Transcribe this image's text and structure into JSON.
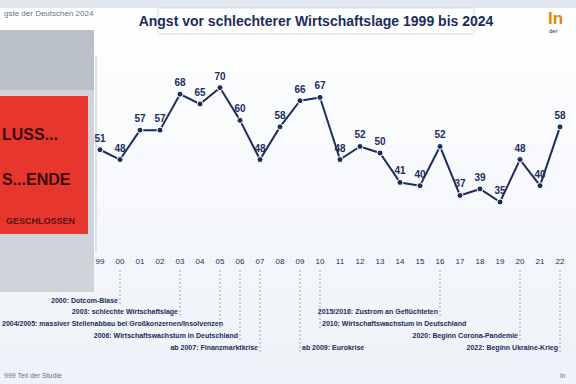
{
  "header": {
    "topic": "gste der Deutschen 2024",
    "logo": "In",
    "logo_sub": "der",
    "footer_left": "999 Teil der Studie",
    "footer_right": "in"
  },
  "photo": {
    "texts": [
      "LUSS...",
      "S...ENDE",
      "GESCHLOSSEN"
    ]
  },
  "chart_data": {
    "type": "line",
    "title": "Angst vor schlechterer Wirtschaftslage 1999 bis 2024",
    "categories": [
      "99",
      "00",
      "01",
      "02",
      "03",
      "04",
      "05",
      "06",
      "07",
      "08",
      "09",
      "10",
      "11",
      "12",
      "13",
      "14",
      "15",
      "16",
      "17",
      "18",
      "19",
      "20",
      "21",
      "22"
    ],
    "values": [
      51,
      48,
      57,
      57,
      68,
      65,
      70,
      60,
      48,
      58,
      66,
      67,
      48,
      52,
      50,
      41,
      40,
      52,
      37,
      39,
      35,
      48,
      40,
      58
    ],
    "color": "#1c2d5c",
    "marker": "circle",
    "data_labels": true,
    "grid": false,
    "tick_labels": "x",
    "ylim": [
      20,
      80
    ],
    "yticks": [],
    "annotations": [
      {
        "text": "2000: Dotcom-Blase",
        "category": "00"
      },
      {
        "text": "2003: schlechte Wirtschaftslage",
        "category": "03"
      },
      {
        "text": "2004/2005: massiver Stellenabbau bei Großkonzernen/Insolvenzen",
        "category": "05"
      },
      {
        "text": "2006: Wirtschaftswachstum in Deutschland",
        "category": "06"
      },
      {
        "text": "ab 2007: Finanzmarktkrise",
        "category": "07"
      },
      {
        "text": "ab 2009: Eurokrise",
        "category": "09"
      },
      {
        "text": "2010: Wirtschaftswachstum in Deutschland",
        "category": "10"
      },
      {
        "text": "2015/2016: Zustrom an Geflüchteten",
        "category": "16"
      },
      {
        "text": "2020: Beginn Corona-Pandemie",
        "category": "20"
      },
      {
        "text": "2022: Beginn Ukraine-Krieg",
        "category": "22"
      }
    ]
  }
}
